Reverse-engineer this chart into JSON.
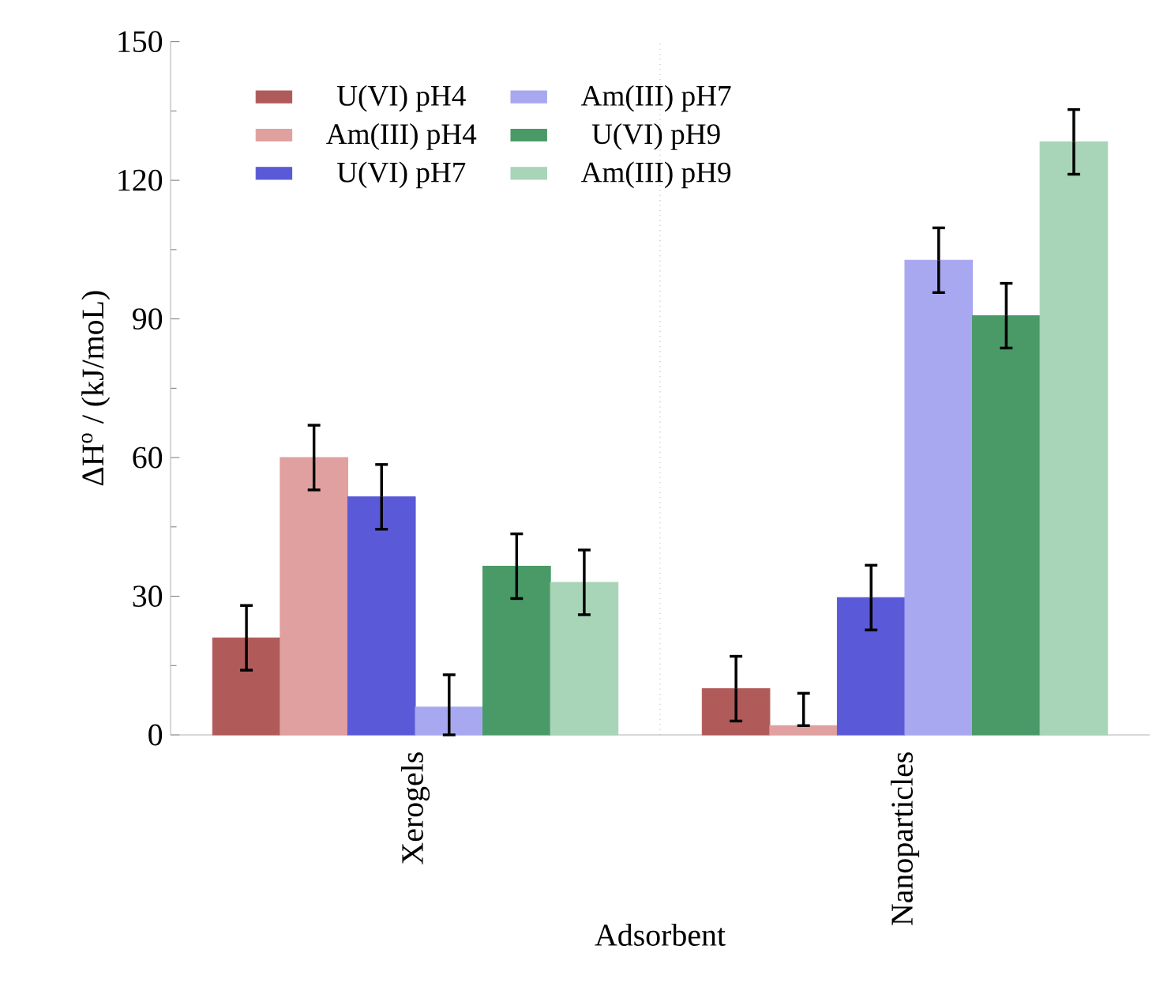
{
  "chart_data": {
    "type": "bar",
    "xlabel": "Adsorbent",
    "ylabel": "ΔH$^{o}$ / (kJ/moL)",
    "categories": [
      "Xerogels",
      "Nanoparticles"
    ],
    "series": [
      {
        "name": "U(VI) pH4",
        "color": "#b05a5a",
        "values": [
          21,
          10
        ],
        "errors": [
          7,
          7
        ]
      },
      {
        "name": "Am(III) pH4",
        "color": "#e0a0a0",
        "values": [
          60,
          2
        ],
        "errors": [
          7,
          [
            2,
            9
          ]
        ]
      },
      {
        "name": "U(VI) pH7",
        "color": "#5a5ad8",
        "values": [
          51.5,
          29.7
        ],
        "errors": [
          7,
          7
        ]
      },
      {
        "name": "Am(III) pH7",
        "color": "#a8a8f0",
        "values": [
          6,
          102.7
        ],
        "errors": [
          [
            0,
            13
          ],
          7
        ]
      },
      {
        "name": "U(VI) pH9",
        "color": "#4a9a68",
        "values": [
          36.5,
          90.7
        ],
        "errors": [
          7,
          7
        ]
      },
      {
        "name": "Am(III) pH9",
        "color": "#a8d4b8",
        "values": [
          33,
          128.3
        ],
        "errors": [
          7,
          7
        ]
      }
    ],
    "ylim": [
      0,
      150
    ],
    "yticks": [
      0,
      30,
      60,
      90,
      120,
      150
    ],
    "legend": "top left",
    "grid": false
  }
}
